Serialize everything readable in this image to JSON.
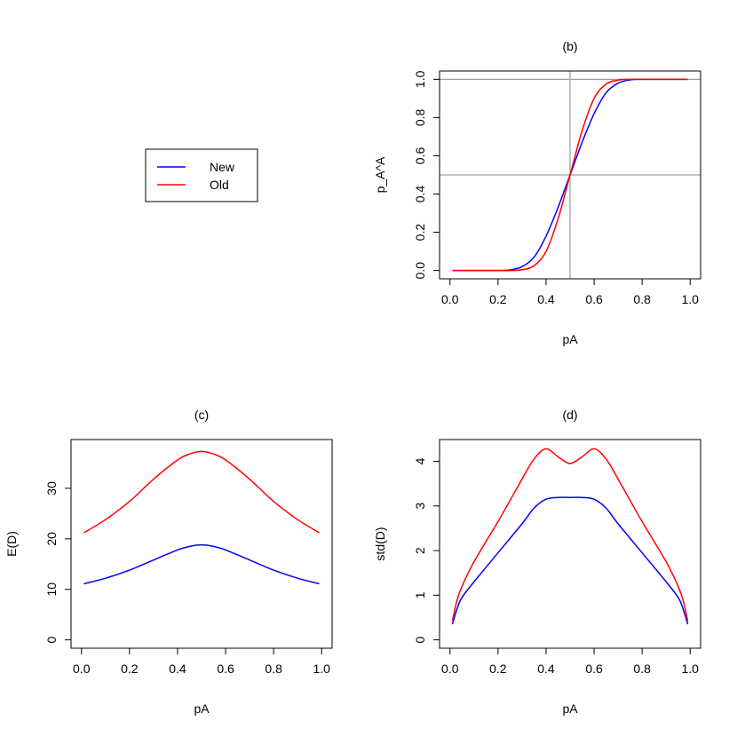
{
  "colors": {
    "new": "#0000ff",
    "old": "#ff0000",
    "reference": "#a0a0a0"
  },
  "legend": {
    "entries": [
      {
        "label": "New",
        "color": "#0000ff"
      },
      {
        "label": "Old",
        "color": "#ff0000"
      }
    ]
  },
  "chart_data": [
    {
      "panel": "b",
      "type": "line",
      "title": "(b)",
      "xlabel": "pA",
      "ylabel": "p_A^A",
      "xlim": [
        0.0,
        1.0
      ],
      "ylim": [
        0.0,
        1.0
      ],
      "xticks": [
        "0.0",
        "0.2",
        "0.4",
        "0.6",
        "0.8",
        "1.0"
      ],
      "yticks": [
        "0.0",
        "0.2",
        "0.4",
        "0.6",
        "0.8",
        "1.0"
      ],
      "reference_lines": {
        "vertical_x": 0.5,
        "horizontal_y": [
          0.5,
          1.0
        ]
      },
      "x": [
        0.01,
        0.1,
        0.2,
        0.25,
        0.3,
        0.35,
        0.4,
        0.45,
        0.5,
        0.55,
        0.6,
        0.65,
        0.7,
        0.75,
        0.8,
        0.9,
        0.99
      ],
      "series": [
        {
          "name": "New",
          "values": [
            0.0,
            0.0,
            0.0,
            0.003,
            0.02,
            0.07,
            0.18,
            0.33,
            0.5,
            0.67,
            0.82,
            0.93,
            0.98,
            0.997,
            1.0,
            1.0,
            1.0
          ]
        },
        {
          "name": "Old",
          "values": [
            0.0,
            0.0,
            0.0,
            0.0,
            0.004,
            0.025,
            0.1,
            0.27,
            0.5,
            0.73,
            0.9,
            0.975,
            0.996,
            1.0,
            1.0,
            1.0,
            1.0
          ]
        }
      ]
    },
    {
      "panel": "c",
      "type": "line",
      "title": "(c)",
      "xlabel": "pA",
      "ylabel": "E(D)",
      "xlim": [
        0.0,
        1.0
      ],
      "ylim": [
        0,
        38
      ],
      "xticks": [
        "0.0",
        "0.2",
        "0.4",
        "0.6",
        "0.8",
        "1.0"
      ],
      "yticks": [
        "0",
        "10",
        "20",
        "30"
      ],
      "x": [
        0.01,
        0.1,
        0.2,
        0.3,
        0.4,
        0.45,
        0.5,
        0.55,
        0.6,
        0.7,
        0.8,
        0.9,
        0.99
      ],
      "series": [
        {
          "name": "New",
          "values": [
            11.1,
            12.2,
            13.8,
            15.8,
            17.8,
            18.5,
            18.8,
            18.5,
            17.8,
            15.8,
            13.8,
            12.2,
            11.1
          ]
        },
        {
          "name": "Old",
          "values": [
            21.2,
            23.8,
            27.4,
            31.8,
            35.6,
            36.8,
            37.3,
            36.8,
            35.6,
            31.8,
            27.4,
            23.8,
            21.2
          ]
        }
      ]
    },
    {
      "panel": "d",
      "type": "line",
      "title": "(d)",
      "xlabel": "pA",
      "ylabel": "std(D)",
      "xlim": [
        0.0,
        1.0
      ],
      "ylim": [
        0,
        4.3
      ],
      "xticks": [
        "0.0",
        "0.2",
        "0.4",
        "0.6",
        "0.8",
        "1.0"
      ],
      "yticks": [
        "0",
        "1",
        "2",
        "3",
        "4"
      ],
      "x": [
        0.01,
        0.03,
        0.05,
        0.1,
        0.2,
        0.3,
        0.35,
        0.4,
        0.45,
        0.5,
        0.55,
        0.6,
        0.65,
        0.7,
        0.8,
        0.9,
        0.95,
        0.97,
        0.99
      ],
      "series": [
        {
          "name": "New",
          "values": [
            0.35,
            0.7,
            0.95,
            1.3,
            1.95,
            2.6,
            2.95,
            3.15,
            3.19,
            3.19,
            3.19,
            3.15,
            2.95,
            2.6,
            1.95,
            1.3,
            0.95,
            0.7,
            0.35
          ]
        },
        {
          "name": "Old",
          "values": [
            0.42,
            0.9,
            1.2,
            1.75,
            2.65,
            3.6,
            4.05,
            4.28,
            4.1,
            3.95,
            4.1,
            4.28,
            4.05,
            3.6,
            2.65,
            1.75,
            1.2,
            0.9,
            0.42
          ]
        }
      ]
    }
  ]
}
